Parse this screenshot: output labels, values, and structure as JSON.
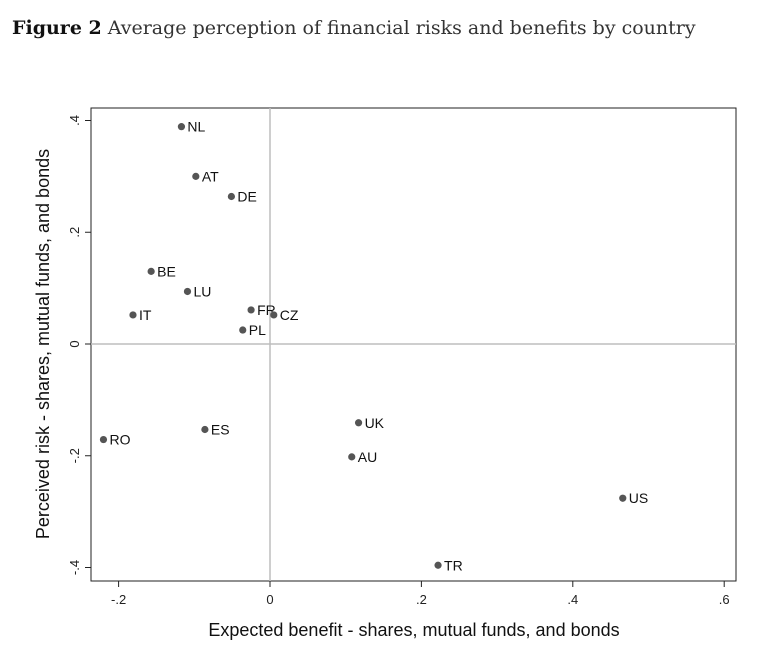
{
  "figure": {
    "number": "Figure 2",
    "caption": "Average perception of financial risks and benefits by country"
  },
  "chart_data": {
    "type": "scatter",
    "xlabel": "Expected benefit - shares, mutual funds, and bonds",
    "ylabel": "Perceived risk - shares, mutual funds, and bonds",
    "xlim": [
      -0.23,
      0.61
    ],
    "ylim": [
      -0.42,
      0.42
    ],
    "xticks": [
      -0.2,
      0,
      0.2,
      0.4,
      0.6
    ],
    "xtick_labels": [
      "-.2",
      "0",
      ".2",
      ".4",
      ".6"
    ],
    "yticks": [
      -0.4,
      -0.2,
      0,
      0.2,
      0.4
    ],
    "ytick_labels": [
      "-.4",
      "-.2",
      "0",
      ".2",
      ".4"
    ],
    "reference_lines": {
      "x": 0,
      "y": 0
    },
    "grid": false,
    "marker_color": "#555555",
    "points": [
      {
        "label": "NL",
        "x": -0.117,
        "y": 0.389
      },
      {
        "label": "AT",
        "x": -0.098,
        "y": 0.3
      },
      {
        "label": "DE",
        "x": -0.051,
        "y": 0.264
      },
      {
        "label": "BE",
        "x": -0.157,
        "y": 0.13
      },
      {
        "label": "LU",
        "x": -0.109,
        "y": 0.094
      },
      {
        "label": "IT",
        "x": -0.181,
        "y": 0.052
      },
      {
        "label": "FR",
        "x": -0.025,
        "y": 0.061
      },
      {
        "label": "CZ",
        "x": 0.005,
        "y": 0.052
      },
      {
        "label": "PL",
        "x": -0.036,
        "y": 0.025
      },
      {
        "label": "RO",
        "x": -0.22,
        "y": -0.171
      },
      {
        "label": "ES",
        "x": -0.086,
        "y": -0.153
      },
      {
        "label": "UK",
        "x": 0.117,
        "y": -0.141
      },
      {
        "label": "AU",
        "x": 0.108,
        "y": -0.202
      },
      {
        "label": "US",
        "x": 0.466,
        "y": -0.276
      },
      {
        "label": "TR",
        "x": 0.222,
        "y": -0.396
      }
    ]
  }
}
